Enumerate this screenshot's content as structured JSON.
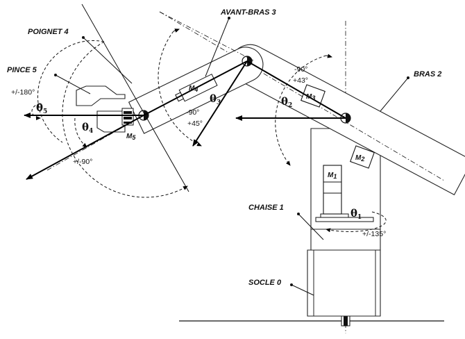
{
  "labels": {
    "poignet": "POIGNET 4",
    "avant_bras": "AVANT-BRAS 3",
    "pince": "PINCE 5",
    "bras": "BRAS 2",
    "chaise": "CHAISE 1",
    "socle": "SOCLE 0"
  },
  "angles": {
    "theta1": "θ",
    "theta2": "θ",
    "theta3": "θ",
    "theta4": "θ",
    "theta5": "θ",
    "sub1": "1",
    "sub2": "2",
    "sub3": "3",
    "sub4": "4",
    "sub5": "5"
  },
  "ranges": {
    "wrist_rot": "+/-180°",
    "wrist_bend": "+/-90°",
    "forearm_min": "-90°",
    "forearm_max": "+45°",
    "arm_min": "-90°",
    "arm_max": "+43°",
    "base": "+/-135°"
  },
  "motors": {
    "m1": "M",
    "m1_sub": "1",
    "m2": "M",
    "m2_sub": "2",
    "m3": "M",
    "m3_sub": "3",
    "m4": "M",
    "m4_sub": "4",
    "m5": "M",
    "m5_sub": "5"
  }
}
